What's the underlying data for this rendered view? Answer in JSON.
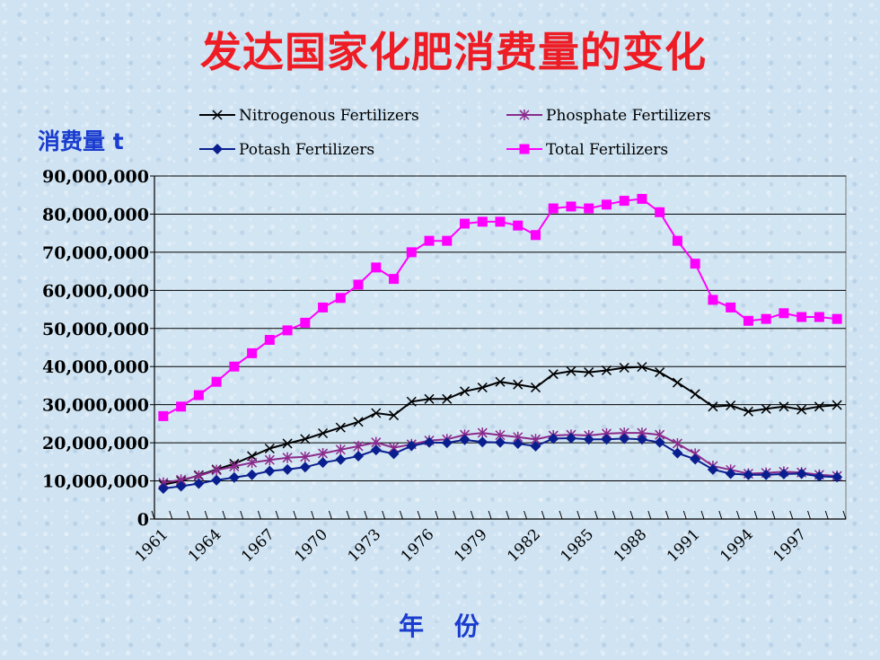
{
  "chart_data": {
    "type": "line",
    "title": "发达国家化肥消费量的变化",
    "ylabel": "消费量 t",
    "xlabel": "年 份",
    "ylim": [
      0,
      90000000
    ],
    "grid": true,
    "legend_position": "top",
    "y_ticks": [
      "0",
      "10,000,000",
      "20,000,000",
      "30,000,000",
      "40,000,000",
      "50,000,000",
      "60,000,000",
      "70,000,000",
      "80,000,000",
      "90,000,000"
    ],
    "x_ticks": [
      "1961",
      "1964",
      "1967",
      "1970",
      "1973",
      "1976",
      "1979",
      "1982",
      "1985",
      "1988",
      "1991",
      "1994",
      "1997"
    ],
    "x": [
      1961,
      1962,
      1963,
      1964,
      1965,
      1966,
      1967,
      1968,
      1969,
      1970,
      1971,
      1972,
      1973,
      1974,
      1975,
      1976,
      1977,
      1978,
      1979,
      1980,
      1981,
      1982,
      1983,
      1984,
      1985,
      1986,
      1987,
      1988,
      1989,
      1990,
      1991,
      1992,
      1993,
      1994,
      1995,
      1996,
      1997,
      1998,
      1999
    ],
    "series": [
      {
        "name": "Nitrogenous Fertilizers",
        "color": "#000000",
        "marker": "x",
        "values": [
          9000000,
          10000000,
          11500000,
          13000000,
          14500000,
          16500000,
          18500000,
          19800000,
          21000000,
          22500000,
          24000000,
          25500000,
          27800000,
          27200000,
          30800000,
          31500000,
          31500000,
          33500000,
          34500000,
          36000000,
          35300000,
          34500000,
          38000000,
          38800000,
          38500000,
          39000000,
          39700000,
          39900000,
          38500000,
          35800000,
          32800000,
          29500000,
          29800000,
          28200000,
          28900000,
          29500000,
          28700000,
          29500000,
          29900000
        ]
      },
      {
        "name": "Phosphate Fertilizers",
        "color": "#8b2b8c",
        "marker": "star",
        "values": [
          9500000,
          10300000,
          11300000,
          12800000,
          13800000,
          14800000,
          15500000,
          16100000,
          16300000,
          17200000,
          18200000,
          19100000,
          20100000,
          18700000,
          19600000,
          20600000,
          20900000,
          22100000,
          22600000,
          22000000,
          21500000,
          20900000,
          21900000,
          22100000,
          21900000,
          22400000,
          22600000,
          22600000,
          22100000,
          19800000,
          17100000,
          13900000,
          12900000,
          11900000,
          12100000,
          12400000,
          12200000,
          11600000,
          11300000
        ]
      },
      {
        "name": "Potash Fertilizers",
        "color": "#0a1f8f",
        "marker": "diamond",
        "values": [
          8000000,
          8600000,
          9300000,
          10200000,
          10900000,
          11600000,
          12600000,
          13000000,
          13600000,
          14800000,
          15600000,
          16500000,
          18100000,
          17100000,
          19200000,
          20100000,
          20000000,
          20800000,
          20200000,
          20100000,
          19800000,
          19100000,
          21100000,
          21200000,
          20900000,
          20900000,
          21100000,
          20900000,
          20100000,
          17300000,
          15700000,
          13000000,
          11900000,
          11600000,
          11600000,
          11800000,
          11900000,
          11200000,
          11000000
        ]
      },
      {
        "name": "Total Fertilizers",
        "color": "#ff00ff",
        "marker": "square",
        "values": [
          27000000,
          29500000,
          32500000,
          36000000,
          40000000,
          43500000,
          47000000,
          49500000,
          51500000,
          55500000,
          58000000,
          61500000,
          66000000,
          63000000,
          70000000,
          73000000,
          73000000,
          77500000,
          78000000,
          78000000,
          77000000,
          74500000,
          81500000,
          82000000,
          81500000,
          82500000,
          83500000,
          84000000,
          80500000,
          73000000,
          67000000,
          57500000,
          55500000,
          52000000,
          52500000,
          54000000,
          53000000,
          53000000,
          52500000
        ]
      }
    ]
  }
}
